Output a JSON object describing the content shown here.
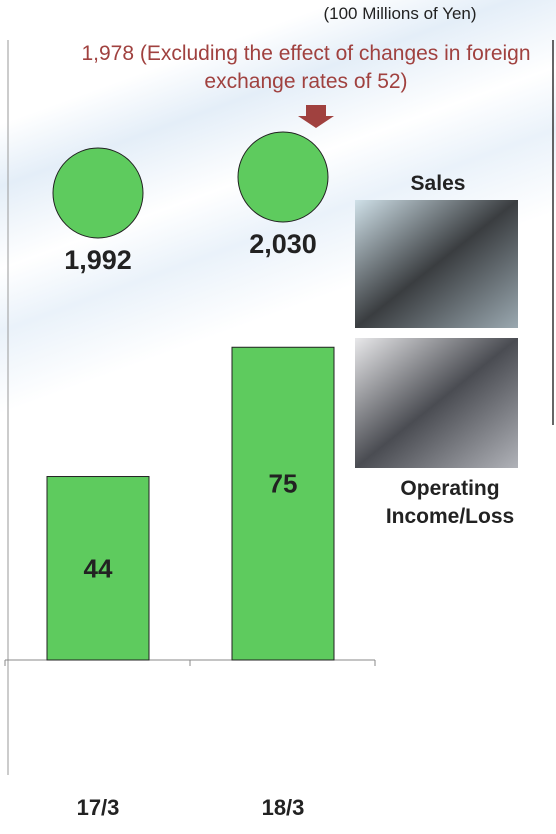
{
  "chart_data": {
    "type": "bar",
    "unit_label": "(100 Millions of Yen)",
    "annotation": "1,978 (Excluding the effect of changes in foreign exchange rates of 52)",
    "categories": [
      "17/3",
      "18/3"
    ],
    "series": [
      {
        "name": "Sales",
        "color": "#5ecb5e",
        "values": [
          1992,
          2030
        ],
        "value_labels": [
          "1,992",
          "2,030"
        ]
      },
      {
        "name": "Operating Income/Loss",
        "color": "#5ecb5e",
        "values": [
          44,
          75
        ]
      }
    ]
  }
}
